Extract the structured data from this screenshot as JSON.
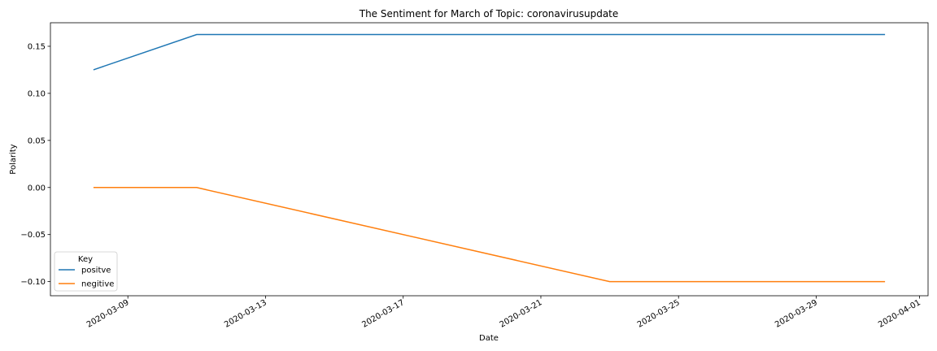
{
  "chart_data": {
    "type": "line",
    "title": "The Sentiment for March of Topic: coronavirusupdate",
    "xlabel": "Date",
    "ylabel": "Polarity",
    "x_type": "date",
    "xlim": [
      "2020-03-07",
      "2020-04-01"
    ],
    "ylim": [
      -0.115,
      0.175
    ],
    "x_ticks": [
      "2020-03-09",
      "2020-03-13",
      "2020-03-17",
      "2020-03-21",
      "2020-03-25",
      "2020-03-29",
      "2020-04-01"
    ],
    "y_ticks": [
      -0.1,
      -0.05,
      0.0,
      0.05,
      0.1,
      0.15
    ],
    "y_tick_labels": [
      "−0.10",
      "−0.05",
      "0.00",
      "0.05",
      "0.10",
      "0.15"
    ],
    "grid": false,
    "legend": {
      "title": "Key",
      "position": "lower-left"
    },
    "series": [
      {
        "name": "positve",
        "color": "#1f77b4",
        "points": [
          {
            "x": "2020-03-08",
            "y": 0.125
          },
          {
            "x": "2020-03-11",
            "y": 0.1625
          },
          {
            "x": "2020-03-31",
            "y": 0.1625
          }
        ]
      },
      {
        "name": "negitive",
        "color": "#ff7f0e",
        "points": [
          {
            "x": "2020-03-08",
            "y": 0.0
          },
          {
            "x": "2020-03-11",
            "y": 0.0
          },
          {
            "x": "2020-03-23",
            "y": -0.1
          },
          {
            "x": "2020-03-31",
            "y": -0.1
          }
        ]
      }
    ]
  }
}
